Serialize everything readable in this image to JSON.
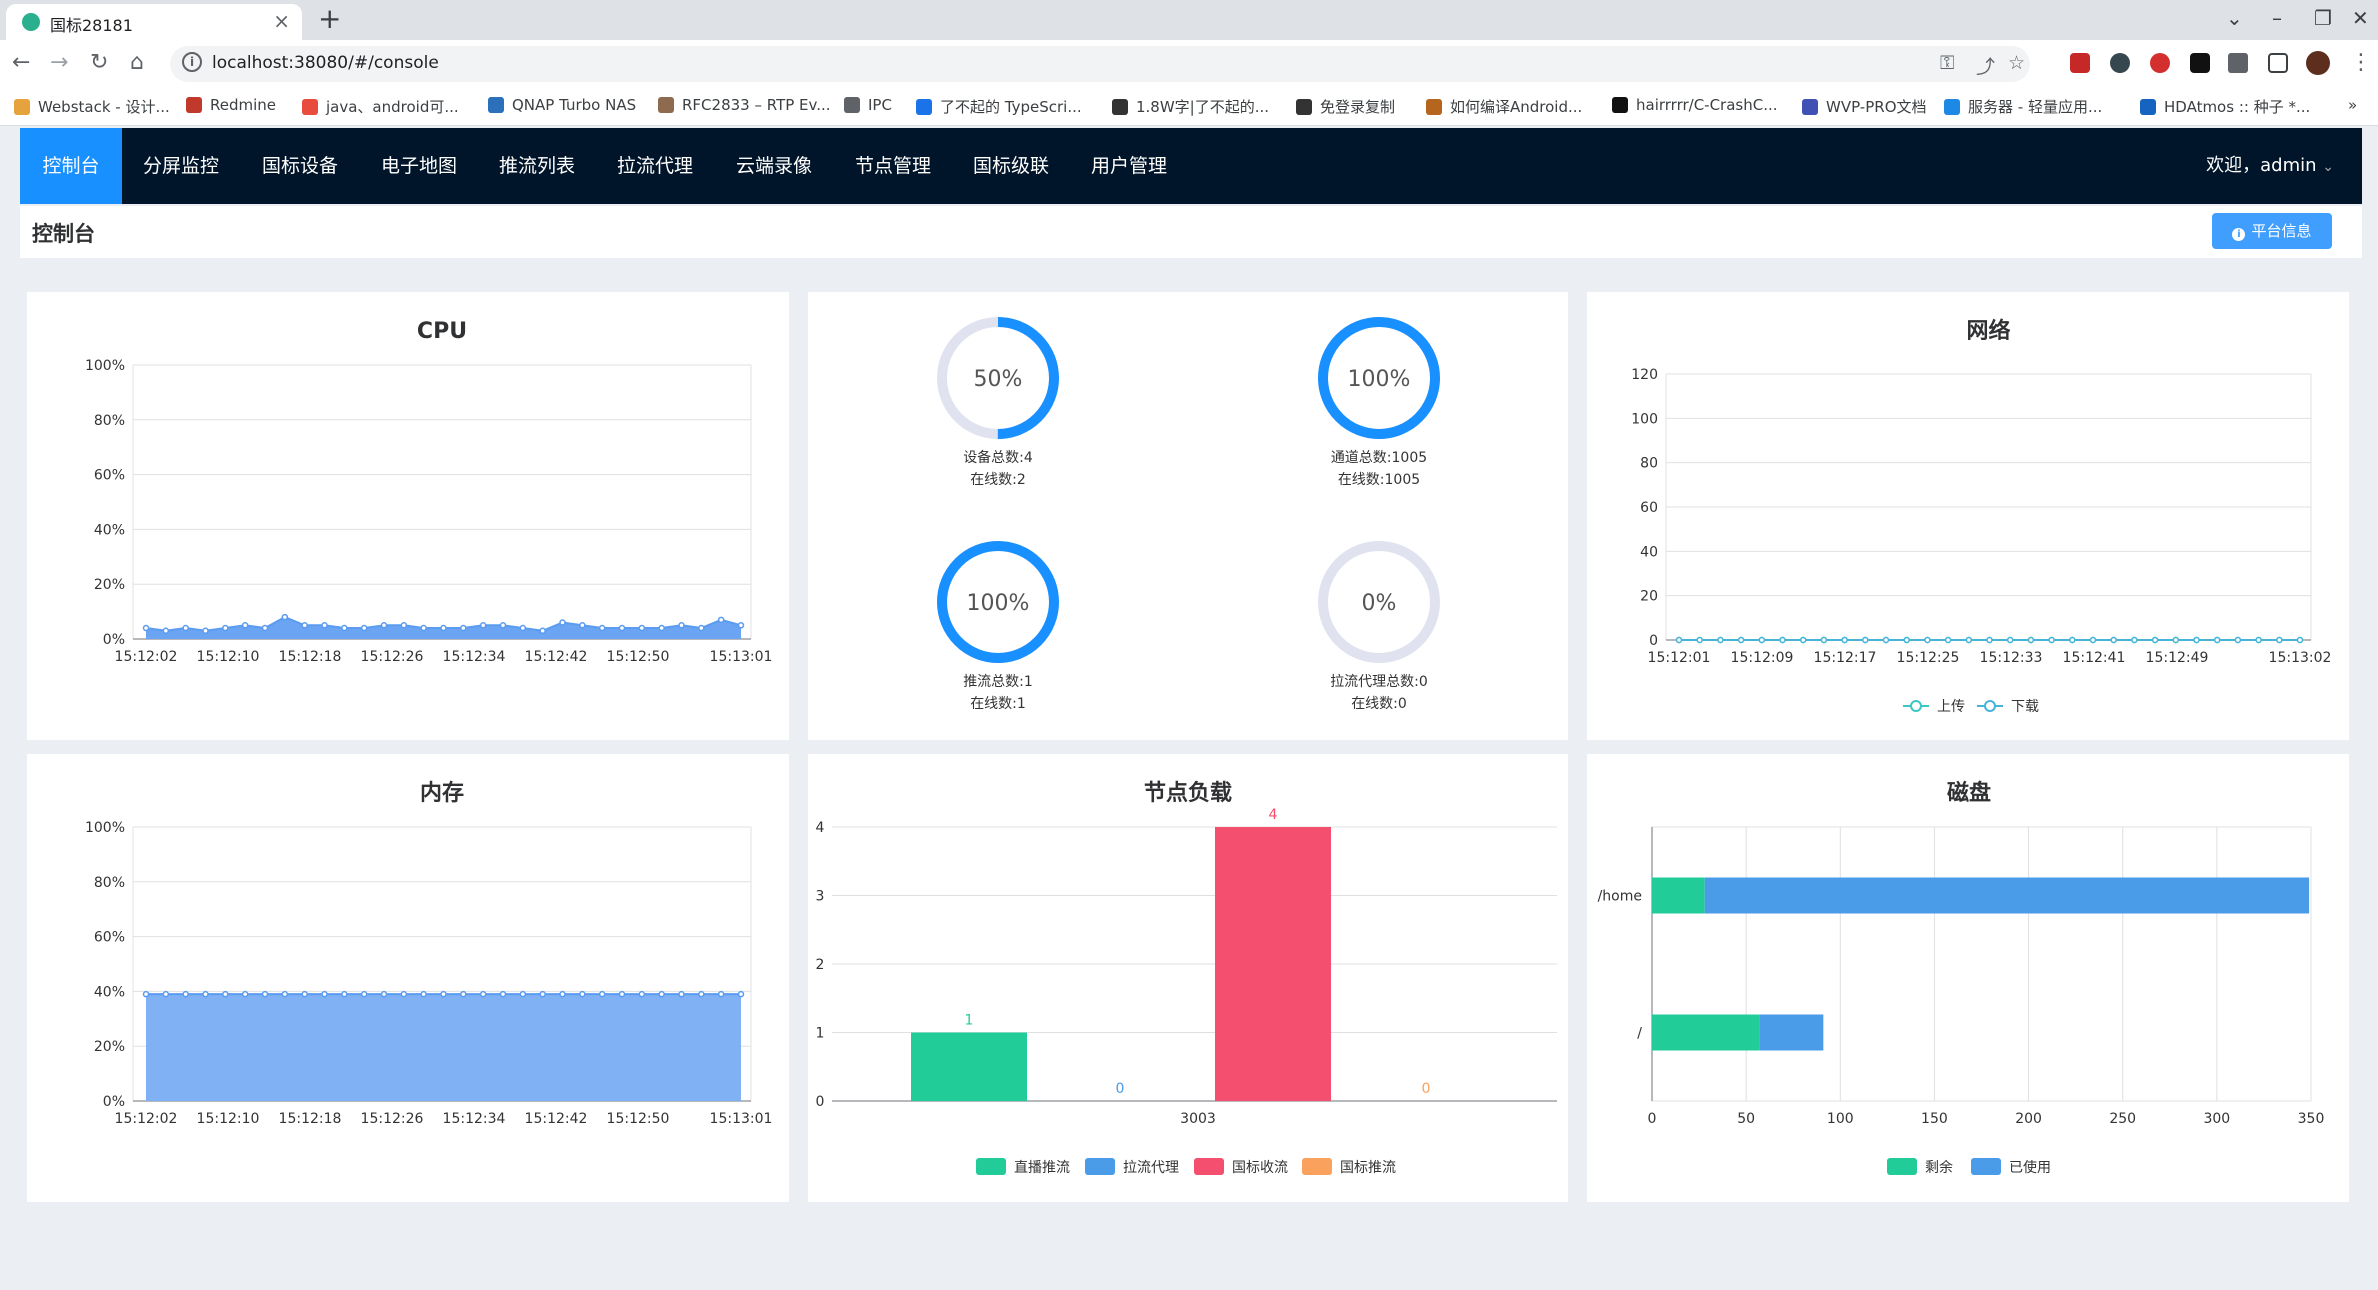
{
  "browser": {
    "tab_title": "国标28181",
    "url": "localhost:38080/#/console",
    "bookmarks": [
      {
        "label": "Webstack - 设计...",
        "color": "#e6a23c"
      },
      {
        "label": "Redmine",
        "color": "#c0392b"
      },
      {
        "label": "java、android可...",
        "color": "#e74c3c"
      },
      {
        "label": "QNAP Turbo NAS",
        "color": "#2c6fbb"
      },
      {
        "label": "RFC2833 – RTP Ev...",
        "color": "#8e6b4e"
      },
      {
        "label": "IPC",
        "color": "#5f6368"
      },
      {
        "label": "了不起的 TypeScri...",
        "color": "#1a73e8"
      },
      {
        "label": "1.8W字|了不起的...",
        "color": "#333333"
      },
      {
        "label": "免登录复制",
        "color": "#333333"
      },
      {
        "label": "如何编译Android...",
        "color": "#b5651d"
      },
      {
        "label": "hairrrrr/C-CrashC...",
        "color": "#111111"
      },
      {
        "label": "WVP-PRO文档",
        "color": "#3f51b5"
      },
      {
        "label": "服务器 - 轻量应用...",
        "color": "#1e88e5"
      },
      {
        "label": "HDAtmos :: 种子 *...",
        "color": "#1565c0"
      }
    ]
  },
  "nav": {
    "items": [
      "控制台",
      "分屏监控",
      "国标设备",
      "电子地图",
      "推流列表",
      "拉流代理",
      "云端录像",
      "节点管理",
      "国标级联",
      "用户管理"
    ],
    "active_index": 0,
    "welcome": "欢迎，admin"
  },
  "page": {
    "title": "控制台",
    "platform_button": "平台信息"
  },
  "colors": {
    "accent": "#1890ff",
    "line_blue": "#5b9bf0",
    "green": "#22cc99",
    "blue": "#4a9be8",
    "red": "#f44f6e",
    "orange": "#f9a15d",
    "gauge_track": "#e0e3ef"
  },
  "cpu": {
    "title": "CPU",
    "y_ticks": [
      "100%",
      "80%",
      "60%",
      "40%",
      "20%",
      "0%"
    ],
    "x_ticks": [
      "15:12:02",
      "15:12:10",
      "15:12:18",
      "15:12:26",
      "15:12:34",
      "15:12:42",
      "15:12:50",
      "15:13:01"
    ],
    "ylim": [
      0,
      100
    ],
    "values": [
      4,
      3,
      4,
      3,
      4,
      5,
      4,
      8,
      5,
      5,
      4,
      4,
      5,
      5,
      4,
      4,
      4,
      5,
      5,
      4,
      3,
      6,
      5,
      4,
      4,
      4,
      4,
      5,
      4,
      7,
      5
    ]
  },
  "memory": {
    "title": "内存",
    "y_ticks": [
      "100%",
      "80%",
      "60%",
      "40%",
      "20%",
      "0%"
    ],
    "x_ticks": [
      "15:12:02",
      "15:12:10",
      "15:12:18",
      "15:12:26",
      "15:12:34",
      "15:12:42",
      "15:12:50",
      "15:13:01"
    ],
    "ylim": [
      0,
      100
    ],
    "values": [
      39,
      39,
      39,
      39,
      39,
      39,
      39,
      39,
      39,
      39,
      39,
      39,
      39,
      39,
      39,
      39,
      39,
      39,
      39,
      39,
      39,
      39,
      39,
      39,
      39,
      39,
      39,
      39,
      39,
      39,
      39
    ]
  },
  "gauges": [
    {
      "percent": 50,
      "label": "50%",
      "line1": "设备总数:4",
      "line2": "在线数:2"
    },
    {
      "percent": 100,
      "label": "100%",
      "line1": "通道总数:1005",
      "line2": "在线数:1005"
    },
    {
      "percent": 100,
      "label": "100%",
      "line1": "推流总数:1",
      "line2": "在线数:1"
    },
    {
      "percent": 0,
      "label": "0%",
      "line1": "拉流代理总数:0",
      "line2": "在线数:0"
    }
  ],
  "network": {
    "title": "网络",
    "y_ticks": [
      "120",
      "100",
      "80",
      "60",
      "40",
      "20",
      "0"
    ],
    "ylim": [
      0,
      120
    ],
    "x_ticks": [
      "15:12:01",
      "15:12:09",
      "15:12:17",
      "15:12:25",
      "15:12:33",
      "15:12:41",
      "15:12:49",
      "15:13:02"
    ],
    "legend": [
      "上传",
      "下载"
    ],
    "upload": [
      0,
      0,
      0,
      0,
      0,
      0,
      0,
      0,
      0,
      0,
      0,
      0,
      0,
      0,
      0,
      0,
      0,
      0,
      0,
      0,
      0,
      0,
      0,
      0,
      0,
      0,
      0,
      0,
      0,
      0,
      0
    ],
    "download": [
      0,
      0,
      0,
      0,
      0,
      0,
      0,
      0,
      0,
      0,
      0,
      0,
      0,
      0,
      0,
      0,
      0,
      0,
      0,
      0,
      0,
      0,
      0,
      0,
      0,
      0,
      0,
      0,
      0,
      0,
      0
    ]
  },
  "node_load": {
    "title": "节点负载",
    "y_ticks": [
      "4",
      "3",
      "2",
      "1",
      "0"
    ],
    "ylim": [
      0,
      4
    ],
    "category": "3003",
    "series": [
      {
        "name": "直播推流",
        "value": 1,
        "color": "#22cc99"
      },
      {
        "name": "拉流代理",
        "value": 0,
        "color": "#4a9be8"
      },
      {
        "name": "国标收流",
        "value": 4,
        "color": "#f44f6e"
      },
      {
        "name": "国标推流",
        "value": 0,
        "color": "#f9a15d"
      }
    ]
  },
  "disk": {
    "title": "磁盘",
    "x_ticks": [
      "0",
      "50",
      "100",
      "150",
      "200",
      "250",
      "300",
      "350"
    ],
    "xlim": [
      0,
      350
    ],
    "categories": [
      "/home",
      "/"
    ],
    "legend": [
      "剩余",
      "已使用"
    ],
    "free": [
      28,
      57
    ],
    "used": [
      321,
      34
    ]
  }
}
